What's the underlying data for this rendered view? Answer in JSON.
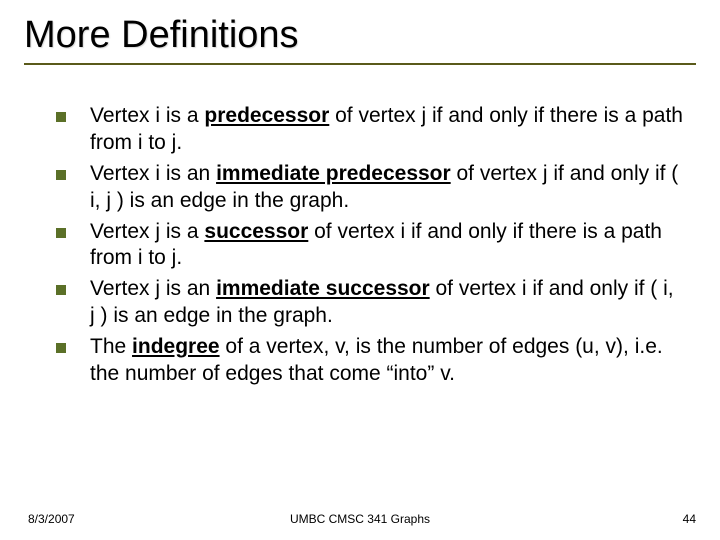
{
  "title": "More Definitions",
  "bullets": [
    {
      "pre": "Vertex i is a ",
      "kw": "predecessor",
      "post": " of vertex j if and only if there is a path from i to j."
    },
    {
      "pre": "Vertex i is an ",
      "kw": "immediate predecessor",
      "post": " of vertex j if and only if ( i, j ) is an edge in the graph."
    },
    {
      "pre": "Vertex j is a ",
      "kw": "successor",
      "post": " of vertex i if and only if there is a path from i to j."
    },
    {
      "pre": "Vertex j is an ",
      "kw": "immediate successor",
      "post": " of vertex i if and only if ( i, j ) is an edge in the graph."
    },
    {
      "pre": "The ",
      "kw": "indegree",
      "post": " of a vertex, v, is the number of edges (u, v),  i.e. the number of edges that come “into” v."
    }
  ],
  "footer": {
    "date": "8/3/2007",
    "center": "UMBC CMSC 341 Graphs",
    "page": "44"
  },
  "colors": {
    "rule": "#5a5a1a",
    "bullet": "#5b7028",
    "text": "#000000",
    "background": "#ffffff"
  },
  "typography": {
    "title_fontsize": 38,
    "body_fontsize": 21,
    "footer_fontsize": 12,
    "font_family": "Arial"
  }
}
